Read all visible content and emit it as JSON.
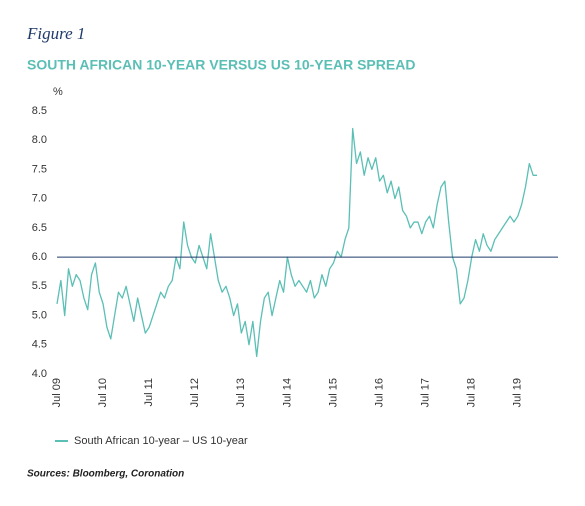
{
  "chart_data": {
    "type": "line",
    "figure_label": "Figure 1",
    "title": "SOUTH AFRICAN 10-YEAR VERSUS US 10-YEAR SPREAD",
    "y_label": "%",
    "source": "Sources: Bloomberg, Coronation",
    "categories": [
      "Jul 09",
      null,
      null,
      null,
      null,
      null,
      null,
      null,
      null,
      null,
      null,
      null,
      "Jul 10",
      null,
      null,
      null,
      null,
      null,
      null,
      null,
      null,
      null,
      null,
      null,
      "Jul 11",
      null,
      null,
      null,
      null,
      null,
      null,
      null,
      null,
      null,
      null,
      null,
      "Jul 12",
      null,
      null,
      null,
      null,
      null,
      null,
      null,
      null,
      null,
      null,
      null,
      "Jul 13",
      null,
      null,
      null,
      null,
      null,
      null,
      null,
      null,
      null,
      null,
      null,
      "Jul 14",
      null,
      null,
      null,
      null,
      null,
      null,
      null,
      null,
      null,
      null,
      null,
      "Jul 15",
      null,
      null,
      null,
      null,
      null,
      null,
      null,
      null,
      null,
      null,
      null,
      "Jul 16",
      null,
      null,
      null,
      null,
      null,
      null,
      null,
      null,
      null,
      null,
      null,
      "Jul 17",
      null,
      null,
      null,
      null,
      null,
      null,
      null,
      null,
      null,
      null,
      null,
      "Jul 18",
      null,
      null,
      null,
      null,
      null,
      null,
      null,
      null,
      null,
      null,
      null,
      "Jul 19",
      null,
      null,
      null,
      null,
      null
    ],
    "series": [
      {
        "name": "South African 10-year – US 10-year",
        "color": "#5bbfb5",
        "values": [
          5.2,
          5.6,
          5.0,
          5.8,
          5.5,
          5.7,
          5.6,
          5.3,
          5.1,
          5.7,
          5.9,
          5.4,
          5.2,
          4.8,
          4.6,
          5.0,
          5.4,
          5.3,
          5.5,
          5.2,
          4.9,
          5.3,
          5.0,
          4.7,
          4.8,
          5.0,
          5.2,
          5.4,
          5.3,
          5.5,
          5.6,
          6.0,
          5.8,
          6.6,
          6.2,
          6.0,
          5.9,
          6.2,
          6.0,
          5.8,
          6.4,
          6.0,
          5.6,
          5.4,
          5.5,
          5.3,
          5.0,
          5.2,
          4.7,
          4.9,
          4.5,
          4.9,
          4.3,
          4.9,
          5.3,
          5.4,
          5.0,
          5.3,
          5.6,
          5.4,
          6.0,
          5.7,
          5.5,
          5.6,
          5.5,
          5.4,
          5.6,
          5.3,
          5.4,
          5.7,
          5.5,
          5.8,
          5.9,
          6.1,
          6.0,
          6.3,
          6.5,
          8.2,
          7.6,
          7.8,
          7.4,
          7.7,
          7.5,
          7.7,
          7.3,
          7.4,
          7.1,
          7.3,
          7.0,
          7.2,
          6.8,
          6.7,
          6.5,
          6.6,
          6.6,
          6.4,
          6.6,
          6.7,
          6.5,
          6.9,
          7.2,
          7.3,
          6.6,
          6.0,
          5.8,
          5.2,
          5.3,
          5.6,
          6.0,
          6.3,
          6.1,
          6.4,
          6.2,
          6.1,
          6.3,
          6.4,
          6.5,
          6.6,
          6.7,
          6.6,
          6.7,
          6.9,
          7.2,
          7.6,
          7.4,
          7.4
        ]
      }
    ],
    "ylim": [
      4,
      8.5
    ],
    "yticks": [
      {
        "value": 4,
        "label": "4.0"
      },
      4.5,
      {
        "value": 5,
        "label": "5.0"
      },
      5.5,
      {
        "value": 6,
        "label": "6.0"
      },
      6.5,
      {
        "value": 7,
        "label": "7.0"
      },
      7.5,
      {
        "value": 8,
        "label": "8.0"
      },
      8.5
    ],
    "reference_line": 6,
    "reference_color": "#1f3a6b"
  }
}
